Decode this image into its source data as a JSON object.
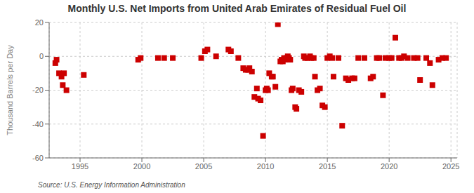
{
  "chart_data": {
    "type": "scatter",
    "title": "Monthly U.S. Net Imports from United Arab Emirates of Residual Fuel Oil",
    "ylabel": "Thousand Barrels per Day",
    "annotation": "Source: U.S. Energy Information Administration",
    "color": "#cc0000",
    "marker": "square",
    "grid": true,
    "xlim": [
      1992.5,
      2025.5
    ],
    "xticks": [
      1995,
      2000,
      2005,
      2010,
      2015,
      2020,
      2025
    ],
    "ylim": [
      -60,
      20
    ],
    "yticks": [
      -60,
      -40,
      -20,
      0,
      20
    ],
    "x": [
      1993.0,
      1993.1,
      1993.3,
      1993.5,
      1993.6,
      1993.7,
      1993.9,
      1995.3,
      1999.7,
      1999.9,
      2001.3,
      2001.8,
      2002.5,
      2004.8,
      2005.1,
      2005.3,
      2006.0,
      2007.0,
      2007.2,
      2007.8,
      2008.2,
      2008.4,
      2008.6,
      2008.9,
      2008.7,
      2009.1,
      2009.3,
      2009.4,
      2009.6,
      2009.8,
      2010.0,
      2010.1,
      2010.2,
      2010.3,
      2010.5,
      2010.6,
      2010.8,
      2011.0,
      2011.2,
      2011.3,
      2011.4,
      2011.5,
      2011.6,
      2011.7,
      2011.8,
      2011.9,
      2012.0,
      2012.1,
      2012.2,
      2012.4,
      2012.5,
      2012.7,
      2012.9,
      2013.1,
      2013.2,
      2013.4,
      2013.6,
      2013.7,
      2013.9,
      2014.0,
      2014.2,
      2014.4,
      2014.6,
      2014.8,
      2015.0,
      2015.2,
      2015.4,
      2015.5,
      2015.9,
      2016.2,
      2016.5,
      2016.7,
      2017.0,
      2017.2,
      2017.5,
      2018.0,
      2018.5,
      2018.7,
      2019.0,
      2019.2,
      2019.5,
      2019.7,
      2020.0,
      2020.2,
      2020.5,
      2020.8,
      2021.0,
      2021.2,
      2021.5,
      2022.0,
      2022.3,
      2022.5,
      2023.0,
      2023.3,
      2023.5,
      2024.0,
      2024.3,
      2024.6
    ],
    "values": [
      -4,
      -2,
      -10,
      -12,
      -17,
      -10,
      -20,
      -11,
      -2,
      -1,
      -1,
      -1,
      -1,
      -1,
      3,
      4,
      0,
      4,
      3,
      -1,
      -7,
      -8,
      -8,
      -9,
      -7,
      -24,
      -19,
      -25,
      -26,
      -47,
      -20,
      -19,
      -20,
      -10,
      -12,
      -12,
      -18,
      19,
      -3,
      -2,
      -3,
      -1,
      -2,
      -1,
      0,
      -1,
      -2,
      -20,
      -19,
      -30,
      -31,
      -20,
      -21,
      0,
      -1,
      -1,
      0,
      -1,
      -1,
      -12,
      -20,
      -19,
      -29,
      -30,
      -1,
      0,
      -1,
      -12,
      -1,
      -41,
      -13,
      -14,
      -13,
      -13,
      -1,
      -1,
      -13,
      -12,
      -1,
      -1,
      -23,
      -1,
      -1,
      -1,
      11,
      -1,
      -1,
      0,
      -1,
      -1,
      -1,
      -14,
      -1,
      -4,
      -17,
      -2,
      -1,
      -1
    ]
  }
}
